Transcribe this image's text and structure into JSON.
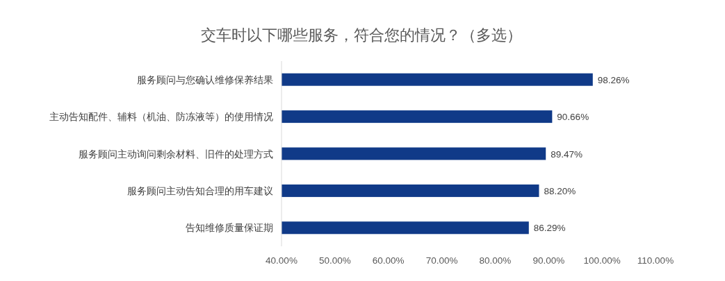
{
  "chart_data": {
    "type": "bar",
    "orientation": "horizontal",
    "title": "交车时以下哪些服务，符合您的情况？（多选）",
    "categories": [
      "服务顾问与您确认维修保养结果",
      "主动告知配件、辅料（机油、防冻液等）的使用情况",
      "服务顾问主动询问剩余材料、旧件的处理方式",
      "服务顾问主动告知合理的用车建议",
      "告知维修质量保证期"
    ],
    "values": [
      98.26,
      90.66,
      89.47,
      88.2,
      86.29
    ],
    "value_labels": [
      "98.26%",
      "90.66%",
      "89.47%",
      "88.20%",
      "86.29%"
    ],
    "color": "#103a88",
    "xlim": [
      40,
      110
    ],
    "xticks": [
      {
        "value": 40,
        "label": "40.00%"
      },
      {
        "value": 50,
        "label": "50.00%"
      },
      {
        "value": 60,
        "label": "60.00%"
      },
      {
        "value": 70,
        "label": "70.00%"
      },
      {
        "value": 80,
        "label": "80.00%"
      },
      {
        "value": 90,
        "label": "90.00%"
      },
      {
        "value": 100,
        "label": "100.00%"
      },
      {
        "value": 110,
        "label": "110.00%"
      }
    ],
    "grid": false
  }
}
